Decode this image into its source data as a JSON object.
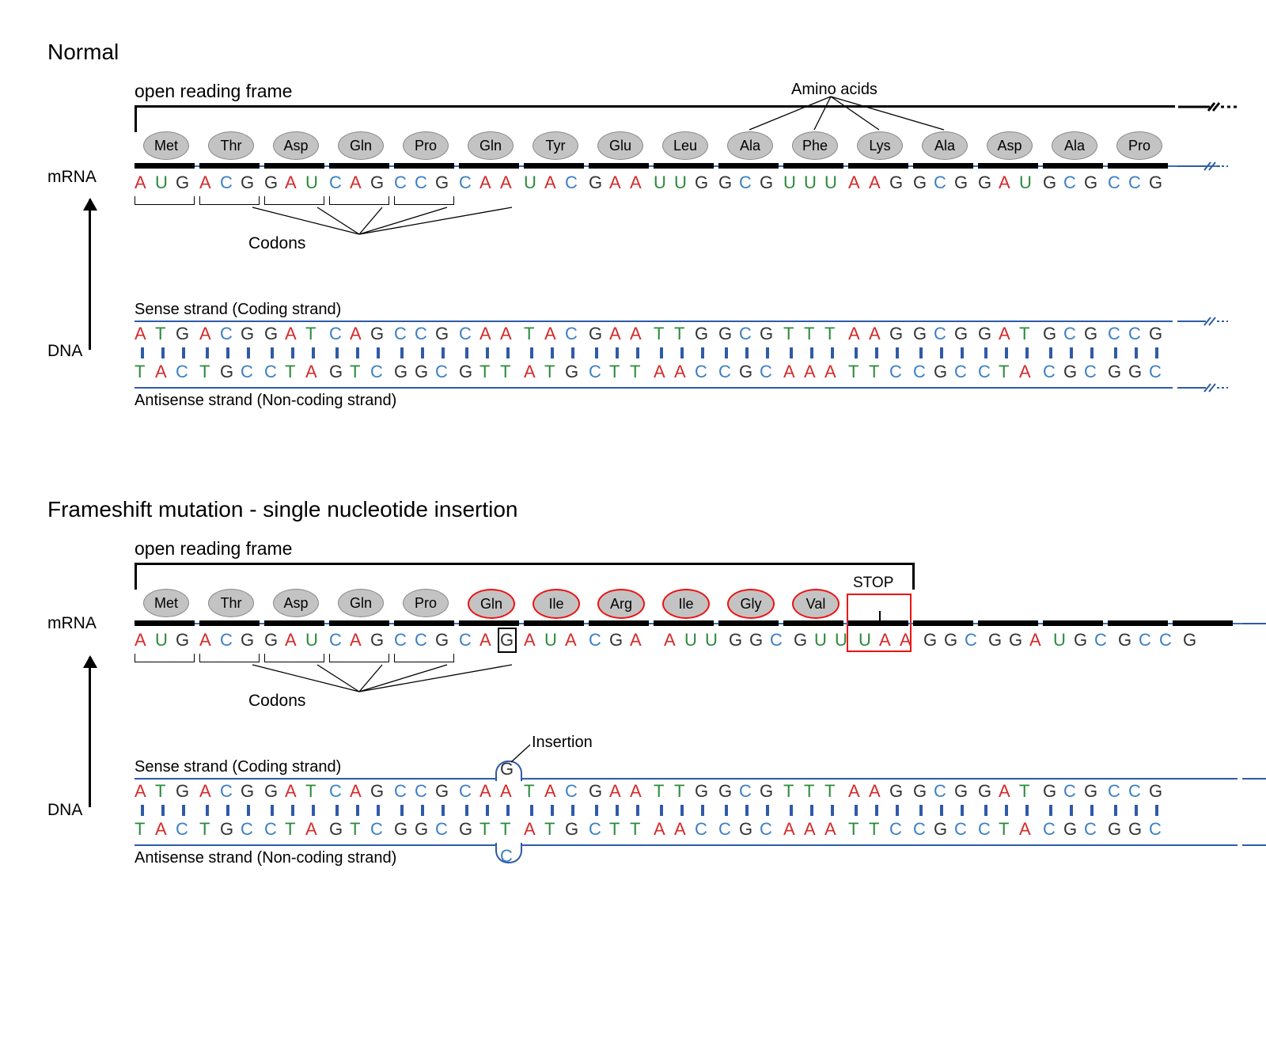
{
  "colors": {
    "A": "#d42a2a",
    "U": "#2a8a3a",
    "T": "#2a8a3a",
    "G": "#333333",
    "C": "#3b7fc4",
    "line": "#2f5aa8"
  },
  "charW": 26,
  "codonGap": 4,
  "panels": [
    {
      "title": "Normal",
      "orf_label": "open reading frame",
      "orf_continues": true,
      "amino_label": "Amino acids",
      "amino_fan_targets": [
        9,
        10,
        11,
        12
      ],
      "mrna_label": "mRNA",
      "dna_label": "DNA",
      "codons_label": "Codons",
      "codon_brackets": [
        0,
        1,
        2,
        3,
        4
      ],
      "amino_acids": [
        {
          "txt": "Met"
        },
        {
          "txt": "Thr"
        },
        {
          "txt": "Asp"
        },
        {
          "txt": "Gln"
        },
        {
          "txt": "Pro"
        },
        {
          "txt": "Gln"
        },
        {
          "txt": "Tyr"
        },
        {
          "txt": "Glu"
        },
        {
          "txt": "Leu"
        },
        {
          "txt": "Ala"
        },
        {
          "txt": "Phe"
        },
        {
          "txt": "Lys"
        },
        {
          "txt": "Ala"
        },
        {
          "txt": "Asp"
        },
        {
          "txt": "Ala"
        },
        {
          "txt": "Pro"
        }
      ],
      "mrna": "AUGACGGAUCAGCCGCAAUACGAAUUGGCGUUUAAGGCGGAUGCGCCG",
      "sense_label": "Sense strand (Coding strand)",
      "antisense_label": "Antisense strand (Non-coding strand)",
      "sense": "ATGACGGATCAGCCGCAATACGAATTGGCGTTTAAGGCGGATGCGCCG",
      "antisense": "TACTGCCTAGTCGGCGTTATGCTTAACCGCAAATTCCGCCTACGCGGC"
    },
    {
      "title": "Frameshift mutation - single nucleotide insertion",
      "orf_label": "open reading frame",
      "orf_continues": false,
      "orf_end_codon": 12,
      "mrna_label": "mRNA",
      "dna_label": "DNA",
      "codons_label": "Codons",
      "codon_brackets": [
        0,
        1,
        2,
        3,
        4
      ],
      "stop_label": "STOP",
      "stop_codon_index": 11,
      "insertion_label": "Insertion",
      "insertion_char_index": 17,
      "amino_acids": [
        {
          "txt": "Met"
        },
        {
          "txt": "Thr"
        },
        {
          "txt": "Asp"
        },
        {
          "txt": "Gln"
        },
        {
          "txt": "Pro"
        },
        {
          "txt": "Gln",
          "changed": true
        },
        {
          "txt": "Ile",
          "changed": true
        },
        {
          "txt": "Arg",
          "changed": true
        },
        {
          "txt": "Ile",
          "changed": true
        },
        {
          "txt": "Gly",
          "changed": true
        },
        {
          "txt": "Val",
          "changed": true
        }
      ],
      "mrna": "AUGACGGAUCAGCCGCAGAUACGAAUUGGCGUUUAAGGCGGAUGCGCCG",
      "mrna_gap_after": 23,
      "sense_label": "Sense strand (Coding strand)",
      "antisense_label": "Antisense strand (Non-coding strand)",
      "sense": "ATGACGGATCAGCCGCAGATACGAATTGGCGTTTAAGGCGGATGCGCCG",
      "antisense": "TACTGCCTAGTCGGCGTCTATGCTTAACCGCAAATTCCGCCTACGCGGC",
      "dna_bump_index": 17
    }
  ]
}
